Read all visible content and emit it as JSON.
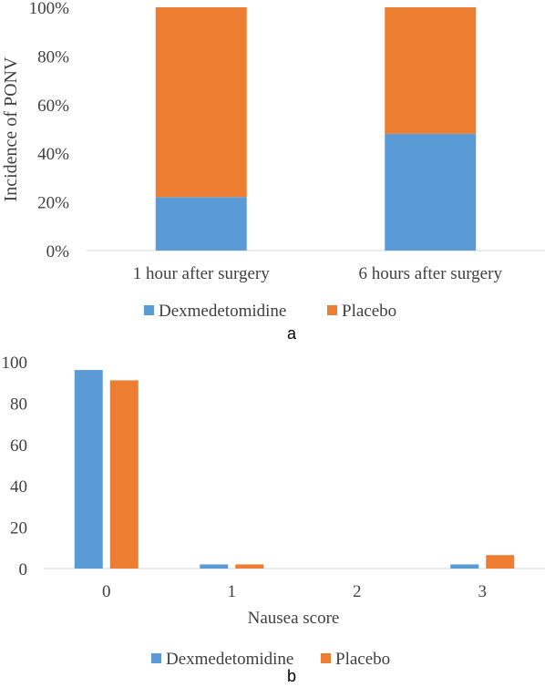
{
  "colors": {
    "dexmedetomidine": "#5B9BD5",
    "placebo": "#ED7D31",
    "axis": "#D9D9D9",
    "text": "#404040"
  },
  "panel_labels": {
    "a": "a",
    "b": "b"
  },
  "chart_data": [
    {
      "type": "bar",
      "stacked": true,
      "percent": true,
      "categories": [
        "1 hour after surgery",
        "6 hours after surgery"
      ],
      "series": [
        {
          "name": "Dexmedetomidine",
          "values": [
            22,
            48
          ]
        },
        {
          "name": "Placebo",
          "values": [
            78,
            52
          ]
        }
      ],
      "ylabel": "Incidence of PONV",
      "xlabel": "",
      "ylim": [
        0,
        100
      ],
      "yticks": [
        "0%",
        "20%",
        "40%",
        "60%",
        "80%",
        "100%"
      ],
      "grid": false,
      "legend": "bottom"
    },
    {
      "type": "bar",
      "stacked": false,
      "categories": [
        "0",
        "1",
        "2",
        "3"
      ],
      "series": [
        {
          "name": "Dexmedetomidine",
          "values": [
            96,
            2,
            0,
            2
          ]
        },
        {
          "name": "Placebo",
          "values": [
            91,
            2,
            0,
            6.5
          ]
        }
      ],
      "xlabel": "Nausea score",
      "ylabel": "",
      "ylim": [
        0,
        100
      ],
      "yticks": [
        "0",
        "20",
        "40",
        "60",
        "80",
        "100"
      ],
      "grid": false,
      "legend": "bottom"
    }
  ]
}
